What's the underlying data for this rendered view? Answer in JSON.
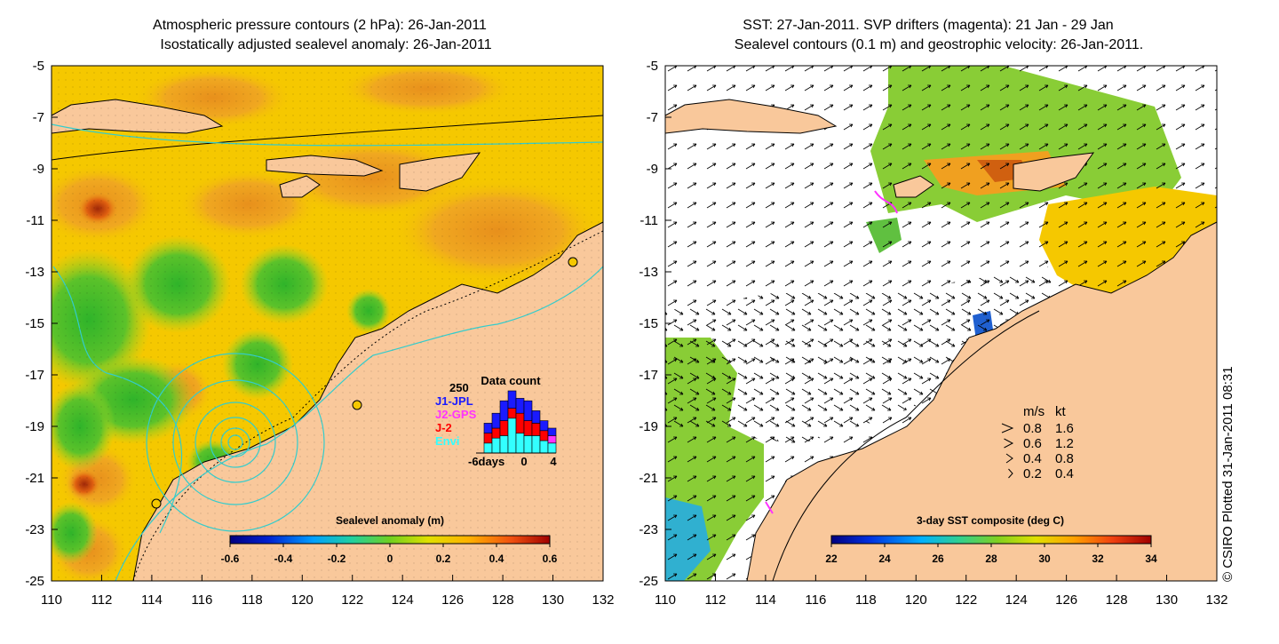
{
  "left_panel": {
    "title_line1": "Atmospheric pressure contours (2 hPa): 26-Jan-2011",
    "title_line2": "Isostatically adjusted sealevel anomaly: 26-Jan-2011",
    "x_ticks": [
      "110",
      "112",
      "114",
      "116",
      "118",
      "120",
      "122",
      "124",
      "126",
      "128",
      "130",
      "132"
    ],
    "y_ticks": [
      "-5",
      "-7",
      "-9",
      "-11",
      "-13",
      "-15",
      "-17",
      "-19",
      "-21",
      "-23",
      "-25"
    ],
    "colorbar": {
      "title": "Sealevel anomaly (m)",
      "labels": [
        "-0.6",
        "-0.4",
        "-0.2",
        "0",
        "0.2",
        "0.4",
        "0.6"
      ],
      "range": [
        -0.6,
        0.6
      ]
    },
    "data_count": {
      "title": "Data count",
      "max_label": "250",
      "legend": [
        {
          "name": "J1-JPL",
          "color": "#1a1aff"
        },
        {
          "name": "J2-GPS",
          "color": "#ff33ff"
        },
        {
          "name": "J-2",
          "color": "#ff0000"
        },
        {
          "name": "Envi",
          "color": "#33ffff"
        }
      ],
      "axis_labels": [
        "-6days",
        "0",
        "4"
      ],
      "bars": [
        {
          "day": -6,
          "envi": 0,
          "j2": 0,
          "j2gps": 0,
          "j1": 0
        },
        {
          "day": -5,
          "envi": 40,
          "j2": 40,
          "j2gps": 0,
          "j1": 40
        },
        {
          "day": -4,
          "envi": 60,
          "j2": 40,
          "j2gps": 0,
          "j1": 60
        },
        {
          "day": -3,
          "envi": 70,
          "j2": 60,
          "j2gps": 0,
          "j1": 80
        },
        {
          "day": -2,
          "envi": 140,
          "j2": 40,
          "j2gps": 0,
          "j1": 70
        },
        {
          "day": -1,
          "envi": 80,
          "j2": 80,
          "j2gps": 0,
          "j1": 60
        },
        {
          "day": 0,
          "envi": 70,
          "j2": 60,
          "j2gps": 0,
          "j1": 80
        },
        {
          "day": 1,
          "envi": 70,
          "j2": 50,
          "j2gps": 0,
          "j1": 50
        },
        {
          "day": 2,
          "envi": 50,
          "j2": 40,
          "j2gps": 0,
          "j1": 40
        },
        {
          "day": 3,
          "envi": 40,
          "j2": 0,
          "j2gps": 30,
          "j1": 30
        }
      ]
    }
  },
  "right_panel": {
    "title_line1": "SST: 27-Jan-2011. SVP drifters (magenta): 21 Jan - 29 Jan",
    "title_line2": "Sealevel contours (0.1 m) and geostrophic velocity: 26-Jan-2011.",
    "x_ticks": [
      "110",
      "112",
      "114",
      "116",
      "118",
      "120",
      "122",
      "124",
      "126",
      "128",
      "130",
      "132"
    ],
    "y_ticks": [
      "-5",
      "-7",
      "-9",
      "-11",
      "-13",
      "-15",
      "-17",
      "-19",
      "-21",
      "-23",
      "-25"
    ],
    "colorbar": {
      "title": "3-day SST composite (deg C)",
      "labels": [
        "22",
        "24",
        "26",
        "28",
        "30",
        "32",
        "34"
      ],
      "range": [
        22,
        34
      ]
    },
    "speed_legend": {
      "header_ms": "m/s",
      "header_kt": "kt",
      "rows": [
        {
          "ms": "0.8",
          "kt": "1.6"
        },
        {
          "ms": "0.6",
          "kt": "1.2"
        },
        {
          "ms": "0.4",
          "kt": "0.8"
        },
        {
          "ms": "0.2",
          "kt": "0.4"
        }
      ]
    }
  },
  "credit": "© CSIRO Plotted 31-Jan-2011 08:31",
  "map_extent": {
    "lon": [
      110,
      132
    ],
    "lat": [
      -25,
      -5
    ]
  },
  "colors": {
    "land": "#f9c89b",
    "ocean_white": "#ffffff",
    "contour_cyan": "#33cccc",
    "sla_yellow": "#f5c800",
    "sla_green": "#5cc22a",
    "sla_orange": "#f0a020"
  }
}
